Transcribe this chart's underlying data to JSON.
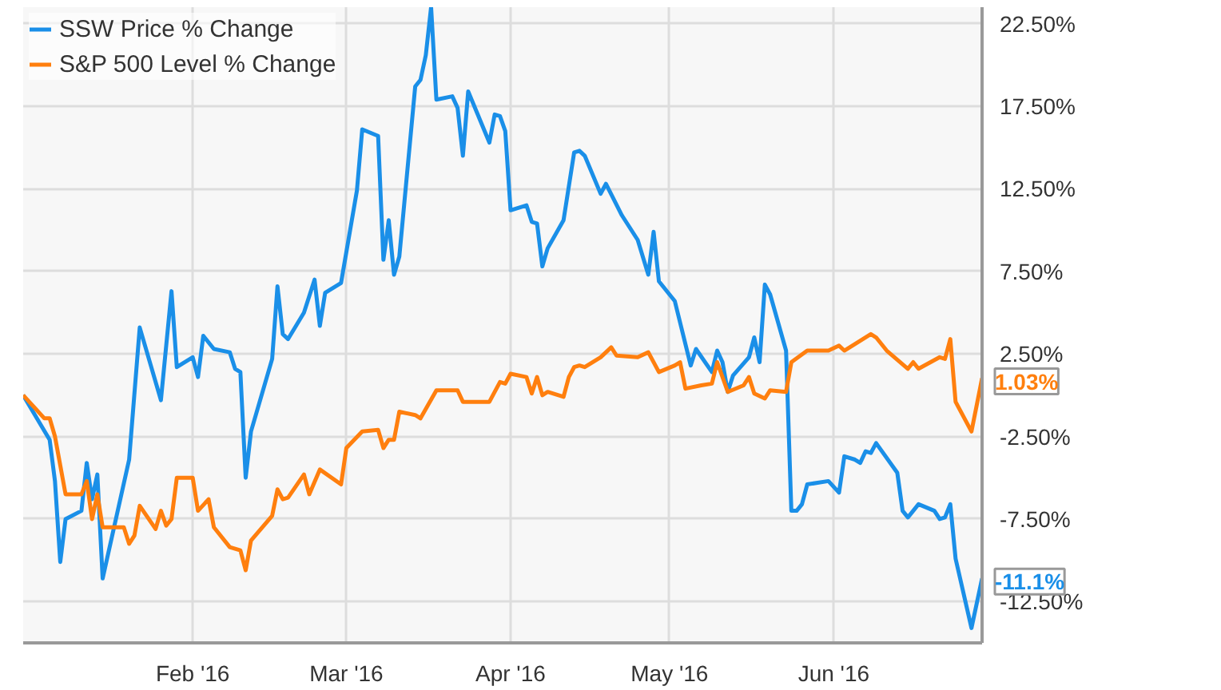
{
  "chart_data": {
    "type": "line",
    "legend": "top left",
    "grid": true,
    "line_style": "solid",
    "marker": "none",
    "xlim": [
      "2015-12-31",
      "2016-06-29"
    ],
    "xticks": [
      {
        "value": "2016-02-01",
        "label": "Feb '16"
      },
      {
        "value": "2016-03-01",
        "label": "Mar '16"
      },
      {
        "value": "2016-04-01",
        "label": "Apr '16"
      },
      {
        "value": "2016-05-01",
        "label": "May '16"
      },
      {
        "value": "2016-06-01",
        "label": "Jun '16"
      }
    ],
    "ylim": [
      -15,
      23.5
    ],
    "yticks": [
      {
        "value": 22.5,
        "label": "22.50%"
      },
      {
        "value": 17.5,
        "label": "17.50%"
      },
      {
        "value": 12.5,
        "label": "12.50%"
      },
      {
        "value": 7.5,
        "label": "7.50%"
      },
      {
        "value": 2.5,
        "label": "2.50%"
      },
      {
        "value": -2.5,
        "label": "-2.50%"
      },
      {
        "value": -7.5,
        "label": "-7.50%"
      },
      {
        "value": -12.5,
        "label": "-12.50%"
      }
    ],
    "series": [
      {
        "name": "SSW Price % Change",
        "color": "#1a8fe8",
        "x": [
          "2015-12-31",
          "2016-01-05",
          "2016-01-06",
          "2016-01-07",
          "2016-01-08",
          "2016-01-11",
          "2016-01-12",
          "2016-01-13",
          "2016-01-14",
          "2016-01-15",
          "2016-01-20",
          "2016-01-22",
          "2016-01-26",
          "2016-01-28",
          "2016-01-29",
          "2016-02-01",
          "2016-02-02",
          "2016-02-03",
          "2016-02-05",
          "2016-02-08",
          "2016-02-09",
          "2016-02-10",
          "2016-02-11",
          "2016-02-12",
          "2016-02-16",
          "2016-02-17",
          "2016-02-18",
          "2016-02-19",
          "2016-02-22",
          "2016-02-24",
          "2016-02-25",
          "2016-02-26",
          "2016-02-29",
          "2016-03-03",
          "2016-03-04",
          "2016-03-07",
          "2016-03-08",
          "2016-03-09",
          "2016-03-10",
          "2016-03-11",
          "2016-03-14",
          "2016-03-15",
          "2016-03-16",
          "2016-03-17",
          "2016-03-18",
          "2016-03-21",
          "2016-03-22",
          "2016-03-23",
          "2016-03-24",
          "2016-03-28",
          "2016-03-29",
          "2016-03-30",
          "2016-03-31",
          "2016-04-01",
          "2016-04-04",
          "2016-04-05",
          "2016-04-06",
          "2016-04-07",
          "2016-04-08",
          "2016-04-11",
          "2016-04-13",
          "2016-04-14",
          "2016-04-15",
          "2016-04-18",
          "2016-04-19",
          "2016-04-22",
          "2016-04-25",
          "2016-04-27",
          "2016-04-28",
          "2016-04-29",
          "2016-05-02",
          "2016-05-05",
          "2016-05-06",
          "2016-05-09",
          "2016-05-10",
          "2016-05-11",
          "2016-05-12",
          "2016-05-13",
          "2016-05-16",
          "2016-05-17",
          "2016-05-18",
          "2016-05-19",
          "2016-05-20",
          "2016-05-23",
          "2016-05-24",
          "2016-05-25",
          "2016-05-26",
          "2016-05-27",
          "2016-05-31",
          "2016-06-02",
          "2016-06-03",
          "2016-06-05",
          "2016-06-06",
          "2016-06-07",
          "2016-06-08",
          "2016-06-09",
          "2016-06-13",
          "2016-06-14",
          "2016-06-15",
          "2016-06-17",
          "2016-06-20",
          "2016-06-21",
          "2016-06-22",
          "2016-06-23",
          "2016-06-24",
          "2016-06-27",
          "2016-06-29"
        ],
        "values": [
          0,
          -2.7,
          -5.2,
          -10.1,
          -7.5,
          -7.0,
          -4.1,
          -6.3,
          -4.8,
          -11.1,
          -3.9,
          4.1,
          -0.3,
          6.3,
          1.7,
          2.3,
          1.1,
          3.6,
          2.8,
          2.6,
          1.6,
          1.4,
          -5.0,
          -2.2,
          2.2,
          6.6,
          3.7,
          3.4,
          5.0,
          7.0,
          4.2,
          6.2,
          6.8,
          12.4,
          16.1,
          15.7,
          8.2,
          10.6,
          7.3,
          8.4,
          18.7,
          19.1,
          20.6,
          23.5,
          17.9,
          18.1,
          17.4,
          14.5,
          18.4,
          15.3,
          17.0,
          16.9,
          16.0,
          11.2,
          11.5,
          10.5,
          10.4,
          7.8,
          8.9,
          10.6,
          14.7,
          14.8,
          14.5,
          12.2,
          12.8,
          10.9,
          9.4,
          7.3,
          9.9,
          6.9,
          5.7,
          1.8,
          2.8,
          1.4,
          2.7,
          2.0,
          0.2,
          1.2,
          2.3,
          3.5,
          2.0,
          6.7,
          6.1,
          2.7,
          -7.0,
          -7.0,
          -6.6,
          -5.4,
          -5.2,
          -5.9,
          -3.7,
          -3.9,
          -4.1,
          -3.4,
          -3.5,
          -2.9,
          -4.7,
          -7.0,
          -7.4,
          -6.6,
          -7.0,
          -7.5,
          -7.4,
          -6.6,
          -9.9,
          -14.1,
          -11.1
        ],
        "value_labels": [
          null,
          null,
          null,
          null,
          null,
          null,
          null,
          null,
          null,
          null,
          null,
          null,
          null,
          null,
          null,
          null,
          null,
          null,
          null,
          null,
          null,
          null,
          null,
          null,
          null,
          null,
          null,
          null,
          null,
          null,
          null,
          null,
          null,
          null,
          null,
          null,
          null,
          null,
          null,
          null,
          null,
          null,
          null,
          null,
          null,
          null,
          null,
          null,
          null,
          null,
          null,
          null,
          null,
          null,
          null,
          null,
          null,
          null,
          null,
          null,
          null,
          null,
          null,
          null,
          null,
          null,
          null,
          null,
          null,
          null,
          null,
          null,
          null,
          null,
          null,
          null,
          null,
          null,
          null,
          null,
          null,
          null,
          null,
          null,
          null,
          null,
          null,
          null,
          null,
          null,
          null,
          null,
          null,
          null,
          null,
          null,
          null,
          null,
          null,
          null,
          null,
          null,
          null,
          null,
          null,
          null,
          "-11.1%"
        ]
      },
      {
        "name": "S&P 500 Level % Change",
        "color": "#ff7f0e",
        "x": [
          "2015-12-31",
          "2016-01-04",
          "2016-01-05",
          "2016-01-06",
          "2016-01-08",
          "2016-01-11",
          "2016-01-12",
          "2016-01-13",
          "2016-01-14",
          "2016-01-15",
          "2016-01-19",
          "2016-01-20",
          "2016-01-21",
          "2016-01-22",
          "2016-01-25",
          "2016-01-26",
          "2016-01-27",
          "2016-01-28",
          "2016-01-29",
          "2016-02-01",
          "2016-02-02",
          "2016-02-04",
          "2016-02-05",
          "2016-02-08",
          "2016-02-10",
          "2016-02-11",
          "2016-02-12",
          "2016-02-16",
          "2016-02-17",
          "2016-02-18",
          "2016-02-19",
          "2016-02-22",
          "2016-02-23",
          "2016-02-25",
          "2016-02-29",
          "2016-03-01",
          "2016-03-04",
          "2016-03-07",
          "2016-03-08",
          "2016-03-09",
          "2016-03-10",
          "2016-03-11",
          "2016-03-14",
          "2016-03-15",
          "2016-03-18",
          "2016-03-22",
          "2016-03-23",
          "2016-03-28",
          "2016-03-30",
          "2016-03-31",
          "2016-04-01",
          "2016-04-04",
          "2016-04-05",
          "2016-04-06",
          "2016-04-07",
          "2016-04-08",
          "2016-04-11",
          "2016-04-12",
          "2016-04-13",
          "2016-04-14",
          "2016-04-15",
          "2016-04-18",
          "2016-04-20",
          "2016-04-21",
          "2016-04-25",
          "2016-04-27",
          "2016-04-29",
          "2016-05-02",
          "2016-05-03",
          "2016-05-04",
          "2016-05-07",
          "2016-05-09",
          "2016-05-10",
          "2016-05-12",
          "2016-05-15",
          "2016-05-16",
          "2016-05-17",
          "2016-05-19",
          "2016-05-20",
          "2016-05-23",
          "2016-05-24",
          "2016-05-27",
          "2016-05-31",
          "2016-06-02",
          "2016-06-03",
          "2016-06-08",
          "2016-06-09",
          "2016-06-11",
          "2016-06-15",
          "2016-06-16",
          "2016-06-17",
          "2016-06-21",
          "2016-06-22",
          "2016-06-23",
          "2016-06-24",
          "2016-06-27",
          "2016-06-29"
        ],
        "values": [
          0,
          -1.4,
          -1.4,
          -2.5,
          -6.0,
          -6.0,
          -5.2,
          -7.5,
          -6.0,
          -8.0,
          -8.0,
          -9.0,
          -8.5,
          -6.7,
          -8.1,
          -7.0,
          -7.9,
          -7.5,
          -5.0,
          -5.0,
          -7.0,
          -6.3,
          -8.0,
          -9.2,
          -9.4,
          -10.6,
          -8.8,
          -7.3,
          -5.7,
          -6.3,
          -6.2,
          -4.8,
          -6.0,
          -4.5,
          -5.4,
          -3.2,
          -2.2,
          -2.1,
          -3.2,
          -2.7,
          -2.7,
          -1.0,
          -1.2,
          -1.4,
          0.3,
          0.3,
          -0.4,
          -0.4,
          0.8,
          0.7,
          1.3,
          1.1,
          0.1,
          1.1,
          0.0,
          0.2,
          -0.1,
          1.1,
          1.7,
          1.8,
          1.7,
          2.3,
          2.9,
          2.4,
          2.3,
          2.6,
          1.4,
          1.8,
          2.0,
          0.4,
          0.6,
          0.7,
          2.0,
          0.2,
          0.6,
          1.1,
          0.1,
          -0.2,
          0.3,
          0.2,
          2.0,
          2.7,
          2.7,
          3.0,
          2.7,
          3.7,
          3.5,
          2.7,
          1.6,
          2.0,
          1.6,
          2.3,
          2.2,
          3.4,
          -0.4,
          -2.2,
          1.03
        ],
        "value_labels": [
          null,
          null,
          null,
          null,
          null,
          null,
          null,
          null,
          null,
          null,
          null,
          null,
          null,
          null,
          null,
          null,
          null,
          null,
          null,
          null,
          null,
          null,
          null,
          null,
          null,
          null,
          null,
          null,
          null,
          null,
          null,
          null,
          null,
          null,
          null,
          null,
          null,
          null,
          null,
          null,
          null,
          null,
          null,
          null,
          null,
          null,
          null,
          null,
          null,
          null,
          null,
          null,
          null,
          null,
          null,
          null,
          null,
          null,
          null,
          null,
          null,
          null,
          null,
          null,
          null,
          null,
          null,
          null,
          null,
          null,
          null,
          null,
          null,
          null,
          null,
          null,
          null,
          null,
          null,
          null,
          null,
          null,
          null,
          null,
          null,
          null,
          null,
          null,
          null,
          null,
          null,
          null,
          null,
          null,
          null,
          null,
          "1.03%"
        ]
      }
    ]
  }
}
